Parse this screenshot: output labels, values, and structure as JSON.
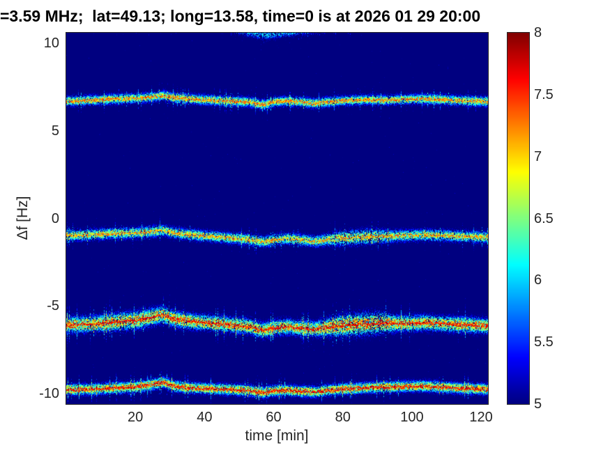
{
  "chart_data": {
    "type": "heatmap",
    "title": "=3.59 MHz;  lat=49.13; long=13.58, time=0 is at 2026 01 29 20:00",
    "xlabel": "time [min]",
    "ylabel": "Δf [Hz]",
    "xlim": [
      0,
      122
    ],
    "ylim": [
      -10.6,
      10.6
    ],
    "xticks": [
      20,
      40,
      60,
      80,
      100,
      120
    ],
    "yticks": [
      10,
      5,
      0,
      -5,
      -10
    ],
    "grid": false,
    "background_value": 5.0,
    "colorbar": {
      "min": 5,
      "max": 8,
      "ticks": [
        5,
        5.5,
        6,
        6.5,
        7,
        7.5,
        8
      ],
      "colormap": "jet",
      "position": "right"
    },
    "bands": [
      {
        "name": "doppler-trace-plus7hz",
        "points": [
          [
            0,
            6.72
          ],
          [
            8,
            6.78
          ],
          [
            14,
            6.85
          ],
          [
            20,
            6.88
          ],
          [
            25,
            6.95
          ],
          [
            28,
            7.05
          ],
          [
            31,
            6.92
          ],
          [
            36,
            6.85
          ],
          [
            42,
            6.78
          ],
          [
            48,
            6.72
          ],
          [
            53,
            6.68
          ],
          [
            57,
            6.5
          ],
          [
            60,
            6.68
          ],
          [
            64,
            6.72
          ],
          [
            68,
            6.68
          ],
          [
            72,
            6.6
          ],
          [
            76,
            6.68
          ],
          [
            80,
            6.75
          ],
          [
            86,
            6.8
          ],
          [
            92,
            6.78
          ],
          [
            98,
            6.82
          ],
          [
            104,
            6.85
          ],
          [
            110,
            6.8
          ],
          [
            115,
            6.75
          ],
          [
            122,
            6.7
          ]
        ],
        "spread": 0.3,
        "density": 26,
        "core_value": 7.25,
        "core_strength": 0.8
      },
      {
        "name": "doppler-trace-minus1hz",
        "points": [
          [
            0,
            -0.95
          ],
          [
            8,
            -0.9
          ],
          [
            14,
            -0.82
          ],
          [
            20,
            -0.8
          ],
          [
            25,
            -0.72
          ],
          [
            28,
            -0.65
          ],
          [
            31,
            -0.8
          ],
          [
            36,
            -0.9
          ],
          [
            42,
            -1.0
          ],
          [
            48,
            -1.1
          ],
          [
            53,
            -1.18
          ],
          [
            57,
            -1.32
          ],
          [
            60,
            -1.2
          ],
          [
            64,
            -1.12
          ],
          [
            68,
            -1.2
          ],
          [
            72,
            -1.28
          ],
          [
            76,
            -1.18
          ],
          [
            80,
            -1.1
          ],
          [
            86,
            -1.02
          ],
          [
            92,
            -1.0
          ],
          [
            98,
            -0.95
          ],
          [
            104,
            -0.92
          ],
          [
            110,
            -0.95
          ],
          [
            115,
            -1.0
          ],
          [
            122,
            -1.05
          ]
        ],
        "spread": 0.34,
        "density": 24,
        "core_value": 7.15,
        "core_strength": 0.65,
        "spread_mod": [
          [
            0,
            1
          ],
          [
            74,
            1
          ],
          [
            80,
            1.4
          ],
          [
            88,
            1.45
          ],
          [
            94,
            1.05
          ],
          [
            122,
            1
          ]
        ]
      },
      {
        "name": "doppler-trace-minus6hz",
        "points": [
          [
            0,
            -6.05
          ],
          [
            8,
            -6.0
          ],
          [
            14,
            -5.88
          ],
          [
            20,
            -5.8
          ],
          [
            25,
            -5.6
          ],
          [
            28,
            -5.45
          ],
          [
            31,
            -5.7
          ],
          [
            36,
            -5.85
          ],
          [
            42,
            -5.95
          ],
          [
            48,
            -6.05
          ],
          [
            53,
            -6.15
          ],
          [
            57,
            -6.38
          ],
          [
            60,
            -6.22
          ],
          [
            64,
            -6.15
          ],
          [
            68,
            -6.25
          ],
          [
            72,
            -6.3
          ],
          [
            76,
            -6.18
          ],
          [
            80,
            -6.1
          ],
          [
            86,
            -6.0
          ],
          [
            92,
            -5.95
          ],
          [
            98,
            -5.98
          ],
          [
            104,
            -5.92
          ],
          [
            110,
            -6.0
          ],
          [
            115,
            -6.05
          ],
          [
            122,
            -6.1
          ]
        ],
        "spread": 0.46,
        "density": 38,
        "core_value": 7.6,
        "core_strength": 0.95,
        "spread_mod": [
          [
            0,
            1.05
          ],
          [
            22,
            1.2
          ],
          [
            32,
            1.05
          ],
          [
            72,
            1
          ],
          [
            79,
            1.45
          ],
          [
            90,
            1.5
          ],
          [
            96,
            1.05
          ],
          [
            122,
            1
          ]
        ]
      },
      {
        "name": "doppler-trace-minus10hz",
        "points": [
          [
            0,
            -9.75
          ],
          [
            8,
            -9.72
          ],
          [
            14,
            -9.65
          ],
          [
            20,
            -9.6
          ],
          [
            25,
            -9.45
          ],
          [
            28,
            -9.32
          ],
          [
            31,
            -9.55
          ],
          [
            36,
            -9.65
          ],
          [
            42,
            -9.7
          ],
          [
            48,
            -9.75
          ],
          [
            53,
            -9.8
          ],
          [
            57,
            -9.92
          ],
          [
            60,
            -9.82
          ],
          [
            64,
            -9.78
          ],
          [
            68,
            -9.85
          ],
          [
            72,
            -9.88
          ],
          [
            76,
            -9.78
          ],
          [
            80,
            -9.72
          ],
          [
            86,
            -9.65
          ],
          [
            92,
            -9.6
          ],
          [
            98,
            -9.58
          ],
          [
            104,
            -9.55
          ],
          [
            110,
            -9.62
          ],
          [
            115,
            -9.68
          ],
          [
            122,
            -9.72
          ]
        ],
        "spread": 0.34,
        "density": 32,
        "core_value": 7.6,
        "core_strength": 0.95
      },
      {
        "name": "doppler-trace-top-edge",
        "points": [
          [
            0,
            11.2
          ],
          [
            45,
            11.05
          ],
          [
            50,
            10.8
          ],
          [
            54,
            10.6
          ],
          [
            57,
            10.5
          ],
          [
            60,
            10.55
          ],
          [
            64,
            10.65
          ],
          [
            70,
            10.8
          ],
          [
            78,
            11.0
          ],
          [
            90,
            11.15
          ],
          [
            122,
            11.2
          ]
        ],
        "spread": 0.3,
        "density": 10,
        "core_value": 6.2,
        "core_strength": 0
      }
    ]
  }
}
